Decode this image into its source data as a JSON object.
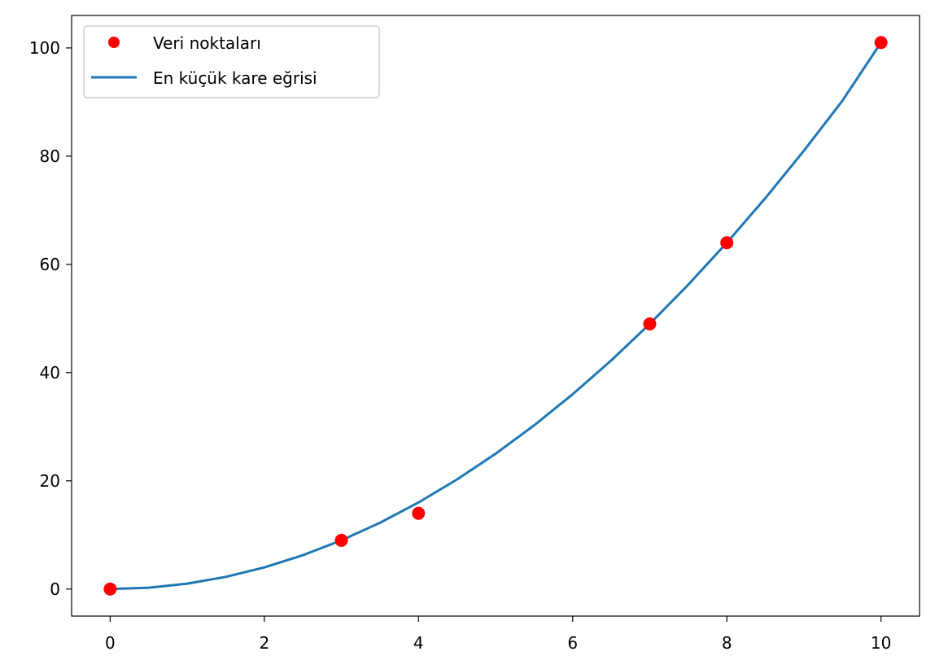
{
  "chart_data": {
    "type": "scatter",
    "title": "",
    "xlabel": "",
    "ylabel": "",
    "xlim": [
      -0.5,
      10.5
    ],
    "ylim": [
      -5,
      106
    ],
    "x_ticks": [
      0,
      2,
      4,
      6,
      8,
      10
    ],
    "y_ticks": [
      0,
      20,
      40,
      60,
      80,
      100
    ],
    "x_tick_labels": [
      "0",
      "2",
      "4",
      "6",
      "8",
      "10"
    ],
    "y_tick_labels": [
      "0",
      "20",
      "40",
      "60",
      "80",
      "100"
    ],
    "grid": false,
    "legend": {
      "placement": "top-left",
      "entries": [
        {
          "label": "Veri noktaları",
          "marker": "circle",
          "color": "#ff0000"
        },
        {
          "label": "En küçük kare eğrisi",
          "marker": "line",
          "color": "#1f77b4"
        }
      ]
    },
    "series": [
      {
        "name": "Veri noktaları",
        "kind": "scatter",
        "color": "#ff0000",
        "points": [
          {
            "x": 0,
            "y": 0
          },
          {
            "x": 3,
            "y": 9
          },
          {
            "x": 4,
            "y": 14
          },
          {
            "x": 7,
            "y": 49
          },
          {
            "x": 8,
            "y": 64
          },
          {
            "x": 10,
            "y": 101
          }
        ]
      },
      {
        "name": "En küçük kare eğrisi",
        "kind": "line",
        "color": "#1f77b4",
        "x": [
          0,
          0.5,
          1,
          1.5,
          2,
          2.5,
          3,
          3.5,
          4,
          4.5,
          5,
          5.5,
          6,
          6.5,
          7,
          7.5,
          8,
          8.5,
          9,
          9.5,
          10
        ],
        "y": [
          0,
          0.25,
          1,
          2.25,
          4,
          6.25,
          9,
          12.25,
          16,
          20.25,
          25,
          30.25,
          36,
          42.25,
          49,
          56.25,
          64,
          72.25,
          81,
          90.25,
          101
        ]
      }
    ]
  }
}
